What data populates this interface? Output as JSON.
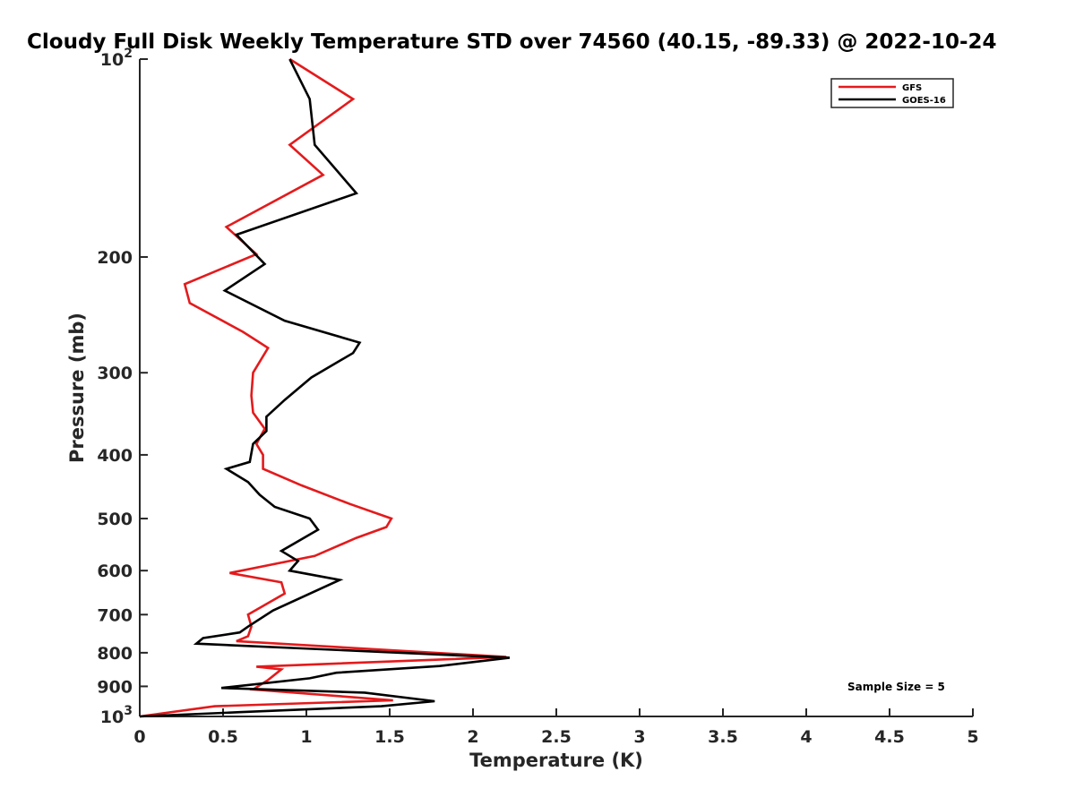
{
  "chart_data": {
    "type": "line",
    "title": "Cloudy Full Disk Weekly Temperature STD over 74560 (40.15, -89.33) @ 2022-10-24",
    "xlabel": "Temperature (K)",
    "ylabel": "Pressure (mb)",
    "xlim": [
      0,
      5
    ],
    "ylim": [
      100,
      1000
    ],
    "y_scale": "log",
    "y_reversed": true,
    "x_ticks": [
      0,
      0.5,
      1,
      1.5,
      2,
      2.5,
      3,
      3.5,
      4,
      4.5,
      5
    ],
    "x_tick_labels": [
      "0",
      "0.5",
      "1",
      "1.5",
      "2",
      "2.5",
      "3",
      "3.5",
      "4",
      "4.5",
      "5"
    ],
    "y_ticks": [
      100,
      200,
      300,
      400,
      500,
      600,
      700,
      800,
      900,
      1000
    ],
    "y_tick_labels": [
      {
        "base": "10",
        "exp": "2"
      },
      {
        "text": "200"
      },
      {
        "text": "300"
      },
      {
        "text": "400"
      },
      {
        "text": "500"
      },
      {
        "text": "600"
      },
      {
        "text": "700"
      },
      {
        "text": "800"
      },
      {
        "text": "900"
      },
      {
        "base": "10",
        "exp": "3"
      }
    ],
    "grid": false,
    "legend_position": "top-right",
    "annotation": "Sample Size = 5",
    "series": [
      {
        "name": "GFS",
        "color": "#e41a1c",
        "points": [
          [
            0.9,
            100
          ],
          [
            1.28,
            115
          ],
          [
            0.9,
            135
          ],
          [
            1.1,
            150
          ],
          [
            0.52,
            180
          ],
          [
            0.7,
            198
          ],
          [
            0.27,
            220
          ],
          [
            0.3,
            235
          ],
          [
            0.62,
            260
          ],
          [
            0.77,
            275
          ],
          [
            0.68,
            300
          ],
          [
            0.67,
            325
          ],
          [
            0.68,
            345
          ],
          [
            0.75,
            365
          ],
          [
            0.7,
            385
          ],
          [
            0.74,
            400
          ],
          [
            0.74,
            420
          ],
          [
            0.97,
            445
          ],
          [
            1.26,
            475
          ],
          [
            1.51,
            500
          ],
          [
            1.48,
            515
          ],
          [
            1.3,
            535
          ],
          [
            1.05,
            570
          ],
          [
            0.54,
            605
          ],
          [
            0.85,
            625
          ],
          [
            0.87,
            650
          ],
          [
            0.65,
            700
          ],
          [
            0.67,
            730
          ],
          [
            0.65,
            755
          ],
          [
            0.58,
            768
          ],
          [
            2.2,
            812
          ],
          [
            0.7,
            840
          ],
          [
            0.85,
            848
          ],
          [
            0.77,
            880
          ],
          [
            0.68,
            910
          ],
          [
            1.52,
            945
          ],
          [
            0.45,
            965
          ],
          [
            0.0,
            1000
          ]
        ]
      },
      {
        "name": "GOES-16",
        "color": "#000000",
        "points": [
          [
            0.9,
            100
          ],
          [
            1.02,
            115
          ],
          [
            1.05,
            135
          ],
          [
            1.3,
            160
          ],
          [
            0.58,
            185
          ],
          [
            0.75,
            205
          ],
          [
            0.51,
            225
          ],
          [
            0.87,
            250
          ],
          [
            1.32,
            270
          ],
          [
            1.28,
            280
          ],
          [
            1.03,
            305
          ],
          [
            0.87,
            330
          ],
          [
            0.76,
            350
          ],
          [
            0.76,
            368
          ],
          [
            0.68,
            385
          ],
          [
            0.66,
            410
          ],
          [
            0.52,
            420
          ],
          [
            0.65,
            440
          ],
          [
            0.72,
            460
          ],
          [
            0.81,
            480
          ],
          [
            1.02,
            500
          ],
          [
            1.07,
            520
          ],
          [
            0.85,
            560
          ],
          [
            0.95,
            580
          ],
          [
            0.9,
            600
          ],
          [
            1.2,
            620
          ],
          [
            0.8,
            690
          ],
          [
            0.65,
            730
          ],
          [
            0.6,
            745
          ],
          [
            0.38,
            760
          ],
          [
            0.34,
            775
          ],
          [
            2.22,
            814
          ],
          [
            1.8,
            838
          ],
          [
            1.18,
            858
          ],
          [
            1.02,
            875
          ],
          [
            0.49,
            905
          ],
          [
            1.35,
            920
          ],
          [
            1.77,
            948
          ],
          [
            1.45,
            965
          ],
          [
            0.6,
            985
          ],
          [
            0.0,
            1000
          ]
        ]
      }
    ]
  }
}
